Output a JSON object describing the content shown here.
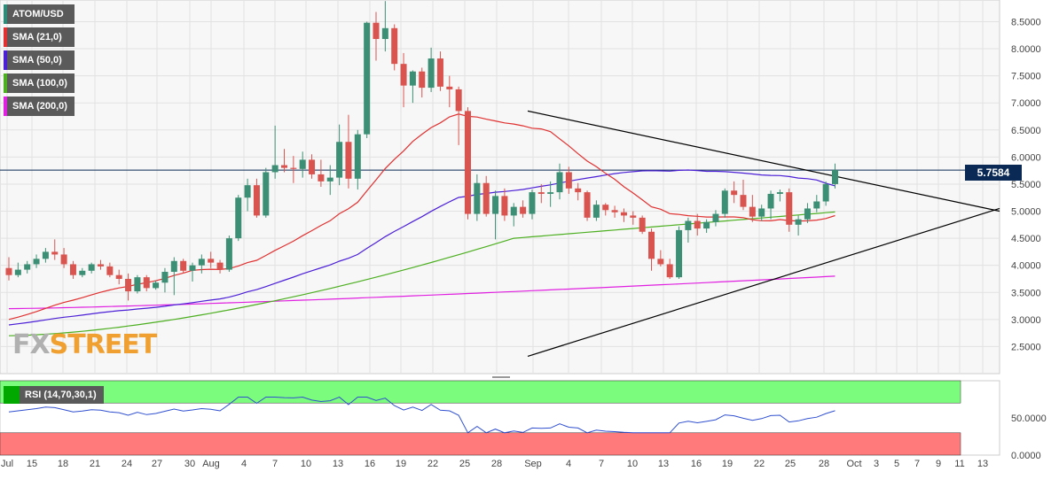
{
  "legend": [
    {
      "label": "ATOM/USD",
      "color": "#2e8b77"
    },
    {
      "label": "SMA (21,0)",
      "color": "#e03030"
    },
    {
      "label": "SMA (50,0)",
      "color": "#4b1fd6"
    },
    {
      "label": "SMA (100,0)",
      "color": "#4caf20"
    },
    {
      "label": "SMA (200,0)",
      "color": "#e020e0"
    }
  ],
  "rsi_label": "RSI (14,70,30,1)",
  "price_badge": "5.7584",
  "watermark": {
    "fx": "FX",
    "street": "STREET"
  },
  "colors": {
    "up": "#3c8f74",
    "down": "#d9534f",
    "bg": "#f7f7f7",
    "grid": "#e2e2e2",
    "sma21": "#e03030",
    "sma50": "#4b1fd6",
    "sma100": "#4caf20",
    "sma200": "#e020e0",
    "rsi_line": "#3050d0",
    "rsi_over": "#7cfc7c",
    "rsi_under": "#ff7b7b"
  },
  "chart_data": {
    "type": "line",
    "ylim": [
      2.0,
      8.9
    ],
    "yticks": [
      "8.5000",
      "8.0000",
      "7.5000",
      "7.0000",
      "6.5000",
      "6.0000",
      "5.5000",
      "5.0000",
      "4.5000",
      "4.0000",
      "3.5000",
      "3.0000",
      "2.5000"
    ],
    "xticks": [
      "Jul",
      "15",
      "18",
      "21",
      "24",
      "27",
      "30",
      "Aug",
      "4",
      "7",
      "10",
      "13",
      "16",
      "19",
      "22",
      "25",
      "28",
      "Sep",
      "4",
      "7",
      "10",
      "13",
      "16",
      "19",
      "22",
      "25",
      "28",
      "Oct",
      "3",
      "5",
      "7",
      "9",
      "11",
      "13"
    ],
    "last_price": 5.7584,
    "candles": [
      [
        3.95,
        4.15,
        3.72,
        3.82
      ],
      [
        3.82,
        4.05,
        3.78,
        3.92
      ],
      [
        3.92,
        4.08,
        3.85,
        4.02
      ],
      [
        4.02,
        4.2,
        3.95,
        4.12
      ],
      [
        4.12,
        4.32,
        4.05,
        4.25
      ],
      [
        4.25,
        4.48,
        4.1,
        4.2
      ],
      [
        4.2,
        4.32,
        3.95,
        4.02
      ],
      [
        4.02,
        4.08,
        3.75,
        3.82
      ],
      [
        3.82,
        3.95,
        3.78,
        3.9
      ],
      [
        3.9,
        4.05,
        3.85,
        4.02
      ],
      [
        4.02,
        4.1,
        3.92,
        3.98
      ],
      [
        3.98,
        4.05,
        3.78,
        3.82
      ],
      [
        3.82,
        3.92,
        3.65,
        3.75
      ],
      [
        3.75,
        3.85,
        3.35,
        3.52
      ],
      [
        3.52,
        3.82,
        3.48,
        3.78
      ],
      [
        3.78,
        3.82,
        3.52,
        3.58
      ],
      [
        3.58,
        3.72,
        3.55,
        3.68
      ],
      [
        3.68,
        3.95,
        3.5,
        3.88
      ],
      [
        3.88,
        4.15,
        3.45,
        4.08
      ],
      [
        4.08,
        4.12,
        3.85,
        3.9
      ],
      [
        3.9,
        4.05,
        3.7,
        4.0
      ],
      [
        4.0,
        4.2,
        3.85,
        4.12
      ],
      [
        4.12,
        4.25,
        3.95,
        4.05
      ],
      [
        4.05,
        4.1,
        3.85,
        3.92
      ],
      [
        3.92,
        4.55,
        3.88,
        4.5
      ],
      [
        4.5,
        5.3,
        4.45,
        5.25
      ],
      [
        5.25,
        5.6,
        5.0,
        5.48
      ],
      [
        5.48,
        5.6,
        4.88,
        4.92
      ],
      [
        4.92,
        5.8,
        4.88,
        5.72
      ],
      [
        5.72,
        6.58,
        5.6,
        5.85
      ],
      [
        5.85,
        6.15,
        5.72,
        5.8
      ],
      [
        5.8,
        6.02,
        5.52,
        5.78
      ],
      [
        5.78,
        6.1,
        5.62,
        5.95
      ],
      [
        5.95,
        6.05,
        5.6,
        5.68
      ],
      [
        5.68,
        5.95,
        5.45,
        5.55
      ],
      [
        5.55,
        5.85,
        5.3,
        5.62
      ],
      [
        5.62,
        6.6,
        5.48,
        6.28
      ],
      [
        6.28,
        6.78,
        5.42,
        5.6
      ],
      [
        5.6,
        6.5,
        5.4,
        6.42
      ],
      [
        6.42,
        8.5,
        6.35,
        8.48
      ],
      [
        8.48,
        8.68,
        7.78,
        8.18
      ],
      [
        8.18,
        8.88,
        7.95,
        8.38
      ],
      [
        8.38,
        8.45,
        7.6,
        7.72
      ],
      [
        7.72,
        7.92,
        6.92,
        7.32
      ],
      [
        7.32,
        7.6,
        7.0,
        7.58
      ],
      [
        7.58,
        7.65,
        7.1,
        7.28
      ],
      [
        7.28,
        8.02,
        7.2,
        7.82
      ],
      [
        7.82,
        7.95,
        7.22,
        7.3
      ],
      [
        7.3,
        7.5,
        6.92,
        7.25
      ],
      [
        7.25,
        7.3,
        6.22,
        6.85
      ],
      [
        6.85,
        6.92,
        4.85,
        4.95
      ],
      [
        4.95,
        5.68,
        4.82,
        5.52
      ],
      [
        5.52,
        5.65,
        4.9,
        4.95
      ],
      [
        4.95,
        5.38,
        4.48,
        5.28
      ],
      [
        5.28,
        5.42,
        4.82,
        4.92
      ],
      [
        4.92,
        5.15,
        4.72,
        5.08
      ],
      [
        5.08,
        5.2,
        4.88,
        4.95
      ],
      [
        4.95,
        5.4,
        4.85,
        5.35
      ],
      [
        5.35,
        5.5,
        5.15,
        5.32
      ],
      [
        5.32,
        5.55,
        5.08,
        5.35
      ],
      [
        5.35,
        5.88,
        5.22,
        5.72
      ],
      [
        5.72,
        5.82,
        5.32,
        5.42
      ],
      [
        5.42,
        5.52,
        5.2,
        5.35
      ],
      [
        5.35,
        5.38,
        4.82,
        4.88
      ],
      [
        4.88,
        5.2,
        4.82,
        5.12
      ],
      [
        5.12,
        5.15,
        4.92,
        5.02
      ],
      [
        5.02,
        5.1,
        4.88,
        4.98
      ],
      [
        4.98,
        5.05,
        4.8,
        4.92
      ],
      [
        4.92,
        5.0,
        4.75,
        4.88
      ],
      [
        4.88,
        4.92,
        4.58,
        4.62
      ],
      [
        4.62,
        4.68,
        3.9,
        4.12
      ],
      [
        4.12,
        4.28,
        3.98,
        4.02
      ],
      [
        4.02,
        4.12,
        3.75,
        3.78
      ],
      [
        3.78,
        4.72,
        3.75,
        4.65
      ],
      [
        4.65,
        4.88,
        4.42,
        4.82
      ],
      [
        4.82,
        4.95,
        4.55,
        4.68
      ],
      [
        4.68,
        4.85,
        4.6,
        4.8
      ],
      [
        4.8,
        5.02,
        4.72,
        4.95
      ],
      [
        4.95,
        5.42,
        4.88,
        5.38
      ],
      [
        5.38,
        5.55,
        5.15,
        5.3
      ],
      [
        5.3,
        5.58,
        5.02,
        5.08
      ],
      [
        5.08,
        5.3,
        4.8,
        4.9
      ],
      [
        4.9,
        5.12,
        4.82,
        5.05
      ],
      [
        5.05,
        5.38,
        4.85,
        5.32
      ],
      [
        5.32,
        5.4,
        5.18,
        5.35
      ],
      [
        5.35,
        5.42,
        4.62,
        4.75
      ],
      [
        4.75,
        4.92,
        4.55,
        4.85
      ],
      [
        4.85,
        5.15,
        4.78,
        5.05
      ],
      [
        5.05,
        5.3,
        4.98,
        5.18
      ],
      [
        5.18,
        5.55,
        5.1,
        5.5
      ],
      [
        5.5,
        5.88,
        5.42,
        5.76
      ]
    ]
  }
}
